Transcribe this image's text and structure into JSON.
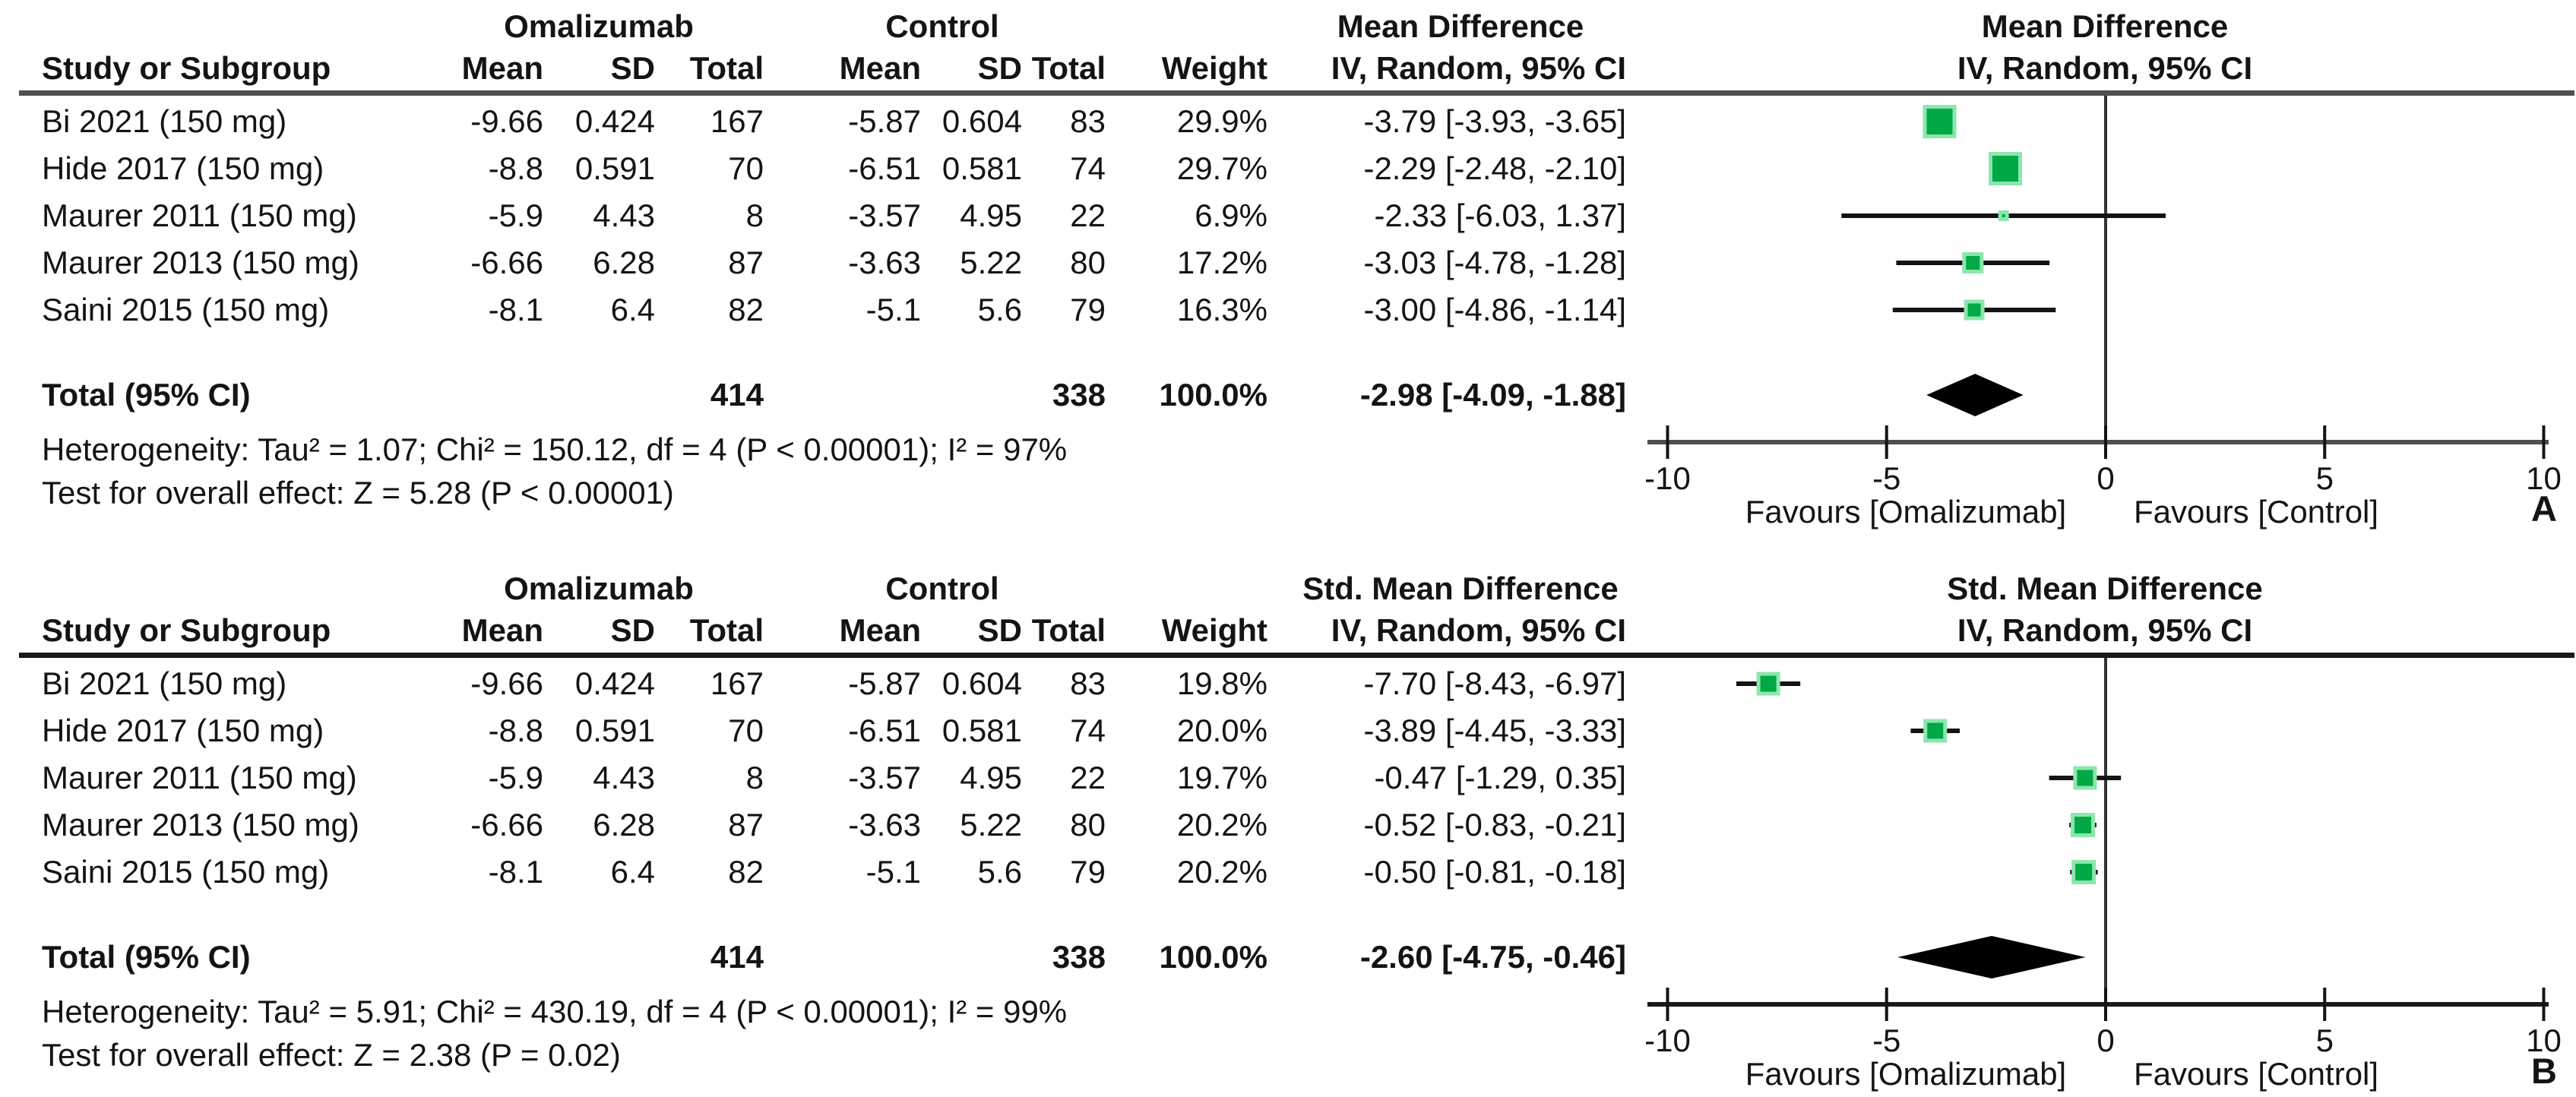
{
  "colors": {
    "square_fill": "#00a846",
    "square_halo": "#8ce6ad",
    "ci_line": "#141414",
    "diamond_fill": "#000000",
    "zero_line": "#333333",
    "axis_panel_a": "#4f4f4f",
    "axis_panel_b": "#1a1a1a",
    "text": "#141414"
  },
  "chart_data": [
    {
      "type": "forest_plot",
      "panel_label": "A",
      "group1_header": "Omalizumab",
      "group2_header": "Control",
      "effect_measure_table_header": "Mean Difference",
      "plot_header_line1": "Mean Difference",
      "plot_header_line2": "IV, Random, 95% CI",
      "columns": {
        "study": "Study or Subgroup",
        "mean": "Mean",
        "sd": "SD",
        "total": "Total",
        "weight": "Weight",
        "ci": "IV, Random, 95% CI"
      },
      "studies": [
        {
          "name": "Bi 2021 (150 mg)",
          "mean1": "-9.66",
          "sd1": "0.424",
          "total1": "167",
          "mean2": "-5.87",
          "sd2": "0.604",
          "total2": "83",
          "weight": "29.9%",
          "ci_text": "-3.79 [-3.93, -3.65]",
          "est": -3.79,
          "lo": -3.93,
          "hi": -3.65,
          "weight_pct": 29.9
        },
        {
          "name": "Hide 2017 (150 mg)",
          "mean1": "-8.8",
          "sd1": "0.591",
          "total1": "70",
          "mean2": "-6.51",
          "sd2": "0.581",
          "total2": "74",
          "weight": "29.7%",
          "ci_text": "-2.29 [-2.48, -2.10]",
          "est": -2.29,
          "lo": -2.48,
          "hi": -2.1,
          "weight_pct": 29.7
        },
        {
          "name": "Maurer 2011 (150 mg)",
          "mean1": "-5.9",
          "sd1": "4.43",
          "total1": "8",
          "mean2": "-3.57",
          "sd2": "4.95",
          "total2": "22",
          "weight": "6.9%",
          "ci_text": "-2.33 [-6.03, 1.37]",
          "est": -2.33,
          "lo": -6.03,
          "hi": 1.37,
          "weight_pct": 6.9
        },
        {
          "name": "Maurer 2013 (150 mg)",
          "mean1": "-6.66",
          "sd1": "6.28",
          "total1": "87",
          "mean2": "-3.63",
          "sd2": "5.22",
          "total2": "80",
          "weight": "17.2%",
          "ci_text": "-3.03 [-4.78, -1.28]",
          "est": -3.03,
          "lo": -4.78,
          "hi": -1.28,
          "weight_pct": 17.2
        },
        {
          "name": "Saini 2015 (150 mg)",
          "mean1": "-8.1",
          "sd1": "6.4",
          "total1": "82",
          "mean2": "-5.1",
          "sd2": "5.6",
          "total2": "79",
          "weight": "16.3%",
          "ci_text": "-3.00 [-4.86, -1.14]",
          "est": -3.0,
          "lo": -4.86,
          "hi": -1.14,
          "weight_pct": 16.3
        }
      ],
      "total_row": {
        "label": "Total (95% CI)",
        "total1": "414",
        "total2": "338",
        "weight": "100.0%",
        "ci_text": "-2.98 [-4.09, -1.88]",
        "est": -2.98,
        "lo": -4.09,
        "hi": -1.88
      },
      "heterogeneity": "Heterogeneity: Tau² = 1.07; Chi² = 150.12, df = 4 (P < 0.00001); I² = 97%",
      "overall_effect": "Test for overall effect: Z = 5.28 (P < 0.00001)",
      "axis": {
        "min": -10,
        "max": 10,
        "ticks": [
          -10,
          -5,
          0,
          5,
          10
        ],
        "tick_labels": [
          "-10",
          "-5",
          "0",
          "5",
          "10"
        ]
      },
      "favours_left": "Favours [Omalizumab]",
      "favours_right": "Favours [Control]"
    },
    {
      "type": "forest_plot",
      "panel_label": "B",
      "group1_header": "Omalizumab",
      "group2_header": "Control",
      "effect_measure_table_header": "Std. Mean Difference",
      "plot_header_line1": "Std. Mean Difference",
      "plot_header_line2": "IV, Random, 95% CI",
      "columns": {
        "study": "Study or Subgroup",
        "mean": "Mean",
        "sd": "SD",
        "total": "Total",
        "weight": "Weight",
        "ci": "IV, Random, 95% CI"
      },
      "studies": [
        {
          "name": "Bi 2021 (150 mg)",
          "mean1": "-9.66",
          "sd1": "0.424",
          "total1": "167",
          "mean2": "-5.87",
          "sd2": "0.604",
          "total2": "83",
          "weight": "19.8%",
          "ci_text": "-7.70 [-8.43, -6.97]",
          "est": -7.7,
          "lo": -8.43,
          "hi": -6.97,
          "weight_pct": 19.8
        },
        {
          "name": "Hide 2017 (150 mg)",
          "mean1": "-8.8",
          "sd1": "0.591",
          "total1": "70",
          "mean2": "-6.51",
          "sd2": "0.581",
          "total2": "74",
          "weight": "20.0%",
          "ci_text": "-3.89 [-4.45, -3.33]",
          "est": -3.89,
          "lo": -4.45,
          "hi": -3.33,
          "weight_pct": 20.0
        },
        {
          "name": "Maurer 2011 (150 mg)",
          "mean1": "-5.9",
          "sd1": "4.43",
          "total1": "8",
          "mean2": "-3.57",
          "sd2": "4.95",
          "total2": "22",
          "weight": "19.7%",
          "ci_text": "-0.47 [-1.29, 0.35]",
          "est": -0.47,
          "lo": -1.29,
          "hi": 0.35,
          "weight_pct": 19.7
        },
        {
          "name": "Maurer 2013 (150 mg)",
          "mean1": "-6.66",
          "sd1": "6.28",
          "total1": "87",
          "mean2": "-3.63",
          "sd2": "5.22",
          "total2": "80",
          "weight": "20.2%",
          "ci_text": "-0.52 [-0.83, -0.21]",
          "est": -0.52,
          "lo": -0.83,
          "hi": -0.21,
          "weight_pct": 20.2
        },
        {
          "name": "Saini 2015 (150 mg)",
          "mean1": "-8.1",
          "sd1": "6.4",
          "total1": "82",
          "mean2": "-5.1",
          "sd2": "5.6",
          "total2": "79",
          "weight": "20.2%",
          "ci_text": "-0.50 [-0.81, -0.18]",
          "est": -0.5,
          "lo": -0.81,
          "hi": -0.18,
          "weight_pct": 20.2
        }
      ],
      "total_row": {
        "label": "Total (95% CI)",
        "total1": "414",
        "total2": "338",
        "weight": "100.0%",
        "ci_text": "-2.60 [-4.75, -0.46]",
        "est": -2.6,
        "lo": -4.75,
        "hi": -0.46
      },
      "heterogeneity": "Heterogeneity: Tau² = 5.91; Chi² = 430.19, df = 4 (P < 0.00001); I² = 99%",
      "overall_effect": "Test for overall effect: Z = 2.38 (P = 0.02)",
      "axis": {
        "min": -10,
        "max": 10,
        "ticks": [
          -10,
          -5,
          0,
          5,
          10
        ],
        "tick_labels": [
          "-10",
          "-5",
          "0",
          "5",
          "10"
        ]
      },
      "favours_left": "Favours [Omalizumab]",
      "favours_right": "Favours [Control]"
    }
  ]
}
